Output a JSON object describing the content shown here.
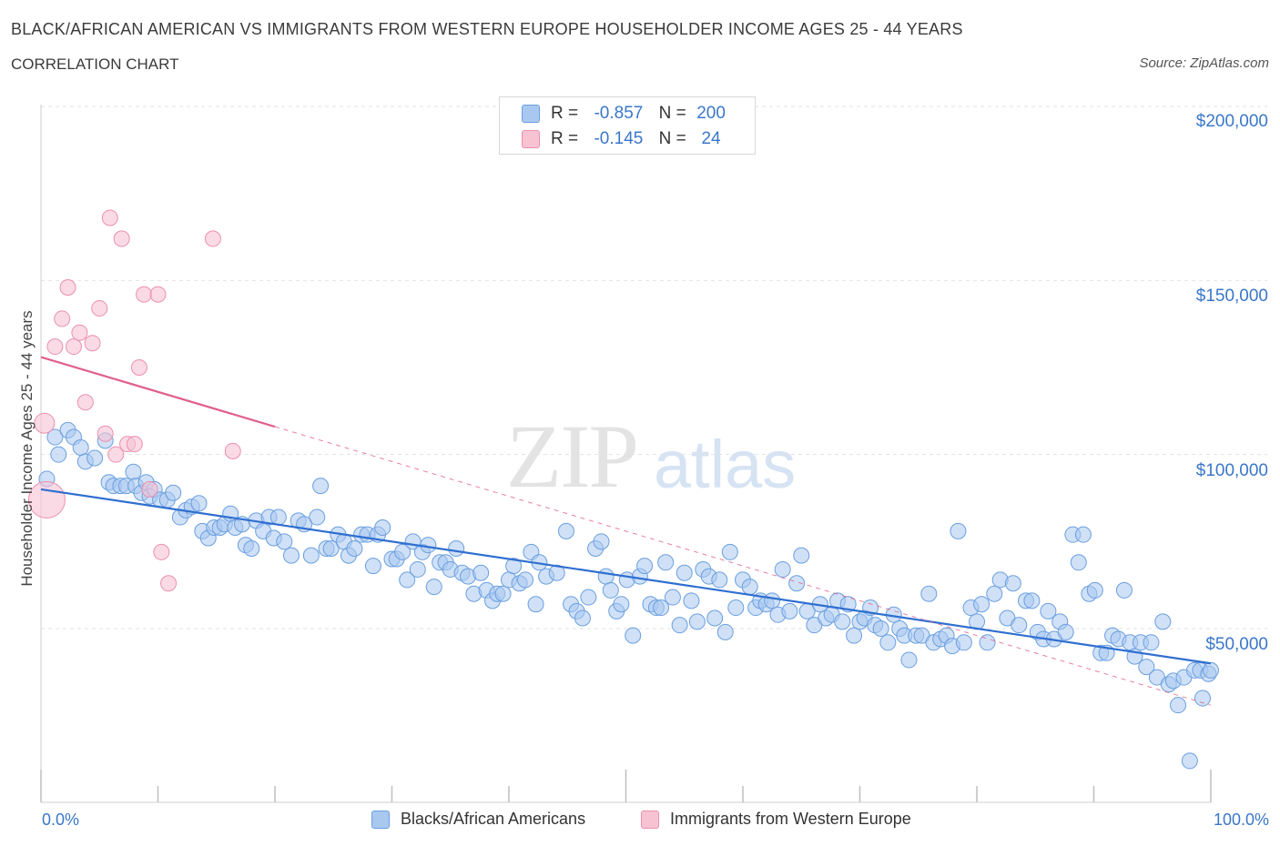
{
  "header": {
    "title": "BLACK/AFRICAN AMERICAN VS IMMIGRANTS FROM WESTERN EUROPE HOUSEHOLDER INCOME AGES 25 - 44 YEARS",
    "subtitle": "CORRELATION CHART",
    "source": "Source: ZipAtlas.com"
  },
  "watermark": {
    "zip": "ZIP",
    "atlas": "atlas"
  },
  "legend": {
    "r_label": "R =",
    "n_label": "N =",
    "rows": [
      {
        "r": "-0.857",
        "n": "200"
      },
      {
        "r": "-0.145",
        "n": "24"
      }
    ]
  },
  "bottom_legend": [
    "Blacks/African Americans",
    "Immigrants from Western Europe"
  ],
  "colors": {
    "blue_fill": "#a9c8f0",
    "blue_stroke": "#6a9fe0",
    "blue_line": "#2f6fd0",
    "pink_fill": "#f7c3d3",
    "pink_stroke": "#ec8fae",
    "pink_line": "#e0608a"
  },
  "chart_data": {
    "type": "scatter",
    "title": "BLACK/AFRICAN AMERICAN VS IMMIGRANTS FROM WESTERN EUROPE HOUSEHOLDER INCOME AGES 25 - 44 YEARS",
    "xlabel": "",
    "ylabel": "Householder Income Ages 25 - 44 years",
    "xlim": [
      0,
      100
    ],
    "ylim": [
      0,
      200000
    ],
    "x_tick_labels": [
      "0.0%",
      "100.0%"
    ],
    "y_ticks": [
      50000,
      100000,
      150000,
      200000
    ],
    "y_tick_labels": [
      "$50,000",
      "$100,000",
      "$150,000",
      "$200,000"
    ],
    "grid": true,
    "legend_position": "top-center",
    "series": [
      {
        "name": "Blacks/African Americans",
        "color": "#6a9fe0",
        "trend": {
          "x": [
            0,
            100
          ],
          "y": [
            90000,
            40000
          ],
          "style": "solid"
        },
        "points": [
          [
            0.5,
            93000
          ],
          [
            1.2,
            105000
          ],
          [
            1.5,
            100000
          ],
          [
            2.3,
            107000
          ],
          [
            2.8,
            105000
          ],
          [
            3.4,
            102000
          ],
          [
            3.8,
            98000
          ],
          [
            4.6,
            99000
          ],
          [
            5.5,
            104000
          ],
          [
            5.8,
            92000
          ],
          [
            6.2,
            91000
          ],
          [
            6.8,
            91000
          ],
          [
            7.3,
            91000
          ],
          [
            7.9,
            95000
          ],
          [
            8.1,
            91000
          ],
          [
            8.6,
            89000
          ],
          [
            9.0,
            92000
          ],
          [
            9.3,
            88000
          ],
          [
            9.7,
            90000
          ],
          [
            10.2,
            87000
          ],
          [
            10.8,
            87000
          ],
          [
            11.3,
            89000
          ],
          [
            11.9,
            82000
          ],
          [
            12.4,
            84000
          ],
          [
            12.9,
            85000
          ],
          [
            13.5,
            86000
          ],
          [
            13.8,
            78000
          ],
          [
            14.3,
            76000
          ],
          [
            14.8,
            79000
          ],
          [
            15.3,
            79000
          ],
          [
            15.7,
            80000
          ],
          [
            16.2,
            83000
          ],
          [
            16.6,
            79000
          ],
          [
            17.2,
            80000
          ],
          [
            17.5,
            74000
          ],
          [
            18.0,
            73000
          ],
          [
            18.4,
            81000
          ],
          [
            19.0,
            78000
          ],
          [
            19.5,
            82000
          ],
          [
            19.9,
            76000
          ],
          [
            20.3,
            82000
          ],
          [
            20.8,
            75000
          ],
          [
            21.4,
            71000
          ],
          [
            22.0,
            81000
          ],
          [
            22.5,
            80000
          ],
          [
            23.1,
            71000
          ],
          [
            23.6,
            82000
          ],
          [
            23.9,
            91000
          ],
          [
            24.4,
            73000
          ],
          [
            24.8,
            73000
          ],
          [
            25.4,
            77000
          ],
          [
            25.9,
            75000
          ],
          [
            26.3,
            71000
          ],
          [
            26.8,
            73000
          ],
          [
            27.4,
            77000
          ],
          [
            27.9,
            77000
          ],
          [
            28.4,
            68000
          ],
          [
            28.8,
            77000
          ],
          [
            29.2,
            79000
          ],
          [
            30.0,
            70000
          ],
          [
            30.4,
            70000
          ],
          [
            30.9,
            72000
          ],
          [
            31.3,
            64000
          ],
          [
            31.8,
            75000
          ],
          [
            32.2,
            67000
          ],
          [
            32.6,
            72000
          ],
          [
            33.1,
            74000
          ],
          [
            33.6,
            62000
          ],
          [
            34.1,
            69000
          ],
          [
            34.6,
            69000
          ],
          [
            35.0,
            67000
          ],
          [
            35.5,
            73000
          ],
          [
            36.0,
            66000
          ],
          [
            36.5,
            65000
          ],
          [
            37.0,
            60000
          ],
          [
            37.6,
            66000
          ],
          [
            38.1,
            61000
          ],
          [
            38.6,
            58000
          ],
          [
            39.0,
            60000
          ],
          [
            39.5,
            60000
          ],
          [
            40.0,
            64000
          ],
          [
            40.4,
            68000
          ],
          [
            40.9,
            63000
          ],
          [
            41.4,
            64000
          ],
          [
            41.9,
            72000
          ],
          [
            42.3,
            57000
          ],
          [
            42.6,
            69000
          ],
          [
            43.2,
            65000
          ],
          [
            44.1,
            66000
          ],
          [
            44.9,
            78000
          ],
          [
            45.3,
            57000
          ],
          [
            45.8,
            55000
          ],
          [
            46.3,
            53000
          ],
          [
            46.8,
            59000
          ],
          [
            47.4,
            73000
          ],
          [
            47.9,
            75000
          ],
          [
            48.3,
            65000
          ],
          [
            48.7,
            61000
          ],
          [
            49.2,
            55000
          ],
          [
            49.6,
            57000
          ],
          [
            50.1,
            64000
          ],
          [
            50.6,
            48000
          ],
          [
            51.2,
            65000
          ],
          [
            51.6,
            68000
          ],
          [
            52.1,
            57000
          ],
          [
            52.6,
            56000
          ],
          [
            53.0,
            56000
          ],
          [
            53.4,
            69000
          ],
          [
            54.0,
            59000
          ],
          [
            54.6,
            51000
          ],
          [
            55.0,
            66000
          ],
          [
            55.6,
            58000
          ],
          [
            56.1,
            52000
          ],
          [
            56.6,
            67000
          ],
          [
            57.1,
            65000
          ],
          [
            57.6,
            53000
          ],
          [
            58.0,
            64000
          ],
          [
            58.5,
            49000
          ],
          [
            58.9,
            72000
          ],
          [
            59.4,
            56000
          ],
          [
            60.0,
            64000
          ],
          [
            60.6,
            62000
          ],
          [
            61.1,
            56000
          ],
          [
            61.5,
            58000
          ],
          [
            62.0,
            57000
          ],
          [
            62.5,
            58000
          ],
          [
            63.0,
            54000
          ],
          [
            63.4,
            67000
          ],
          [
            64.0,
            55000
          ],
          [
            64.6,
            63000
          ],
          [
            65.0,
            71000
          ],
          [
            65.5,
            55000
          ],
          [
            66.1,
            51000
          ],
          [
            66.6,
            57000
          ],
          [
            67.1,
            53000
          ],
          [
            67.6,
            54000
          ],
          [
            68.1,
            58000
          ],
          [
            68.5,
            52000
          ],
          [
            69.0,
            57000
          ],
          [
            69.5,
            48000
          ],
          [
            70.0,
            52000
          ],
          [
            70.4,
            53000
          ],
          [
            70.9,
            56000
          ],
          [
            71.3,
            51000
          ],
          [
            71.8,
            50000
          ],
          [
            72.4,
            46000
          ],
          [
            72.9,
            54000
          ],
          [
            73.4,
            50000
          ],
          [
            73.8,
            48000
          ],
          [
            74.2,
            41000
          ],
          [
            74.8,
            48000
          ],
          [
            75.3,
            48000
          ],
          [
            75.9,
            60000
          ],
          [
            76.3,
            46000
          ],
          [
            76.9,
            47000
          ],
          [
            77.4,
            48000
          ],
          [
            77.9,
            45000
          ],
          [
            78.4,
            78000
          ],
          [
            78.9,
            46000
          ],
          [
            79.5,
            56000
          ],
          [
            80.0,
            52000
          ],
          [
            80.4,
            57000
          ],
          [
            80.9,
            46000
          ],
          [
            81.5,
            60000
          ],
          [
            82.0,
            64000
          ],
          [
            82.6,
            53000
          ],
          [
            83.1,
            63000
          ],
          [
            83.6,
            51000
          ],
          [
            84.2,
            58000
          ],
          [
            84.7,
            58000
          ],
          [
            85.2,
            49000
          ],
          [
            85.7,
            47000
          ],
          [
            86.1,
            55000
          ],
          [
            86.6,
            47000
          ],
          [
            87.1,
            52000
          ],
          [
            87.6,
            49000
          ],
          [
            88.2,
            77000
          ],
          [
            88.7,
            69000
          ],
          [
            89.1,
            77000
          ],
          [
            89.6,
            60000
          ],
          [
            90.1,
            61000
          ],
          [
            90.6,
            43000
          ],
          [
            91.1,
            43000
          ],
          [
            91.6,
            48000
          ],
          [
            92.1,
            47000
          ],
          [
            92.6,
            61000
          ],
          [
            93.1,
            46000
          ],
          [
            93.5,
            42000
          ],
          [
            94.0,
            46000
          ],
          [
            94.5,
            39000
          ],
          [
            94.9,
            46000
          ],
          [
            95.4,
            36000
          ],
          [
            95.9,
            52000
          ],
          [
            96.4,
            34000
          ],
          [
            96.8,
            35000
          ],
          [
            97.2,
            28000
          ],
          [
            97.7,
            36000
          ],
          [
            98.2,
            12000
          ],
          [
            98.6,
            38000
          ],
          [
            99.1,
            38000
          ],
          [
            99.3,
            30000
          ],
          [
            99.8,
            37000
          ],
          [
            100.0,
            38000
          ]
        ]
      },
      {
        "name": "Immigrants from Western Europe",
        "color": "#ec8fae",
        "trend": {
          "x_solid": [
            0,
            20
          ],
          "x_dashed": [
            20,
            100
          ],
          "y_at_0": 128000,
          "y_at_100": 28000
        },
        "points": [
          [
            0.3,
            109000
          ],
          [
            0.5,
            87000
          ],
          [
            1.2,
            131000
          ],
          [
            1.8,
            139000
          ],
          [
            2.3,
            148000
          ],
          [
            2.8,
            131000
          ],
          [
            3.3,
            135000
          ],
          [
            3.8,
            115000
          ],
          [
            4.4,
            132000
          ],
          [
            5.0,
            142000
          ],
          [
            5.5,
            106000
          ],
          [
            5.9,
            168000
          ],
          [
            6.4,
            100000
          ],
          [
            6.9,
            162000
          ],
          [
            7.4,
            103000
          ],
          [
            8.0,
            103000
          ],
          [
            8.4,
            125000
          ],
          [
            8.8,
            146000
          ],
          [
            9.3,
            90000
          ],
          [
            10.0,
            146000
          ],
          [
            10.3,
            72000
          ],
          [
            10.9,
            63000
          ],
          [
            14.7,
            162000
          ],
          [
            16.4,
            101000
          ]
        ]
      }
    ]
  }
}
